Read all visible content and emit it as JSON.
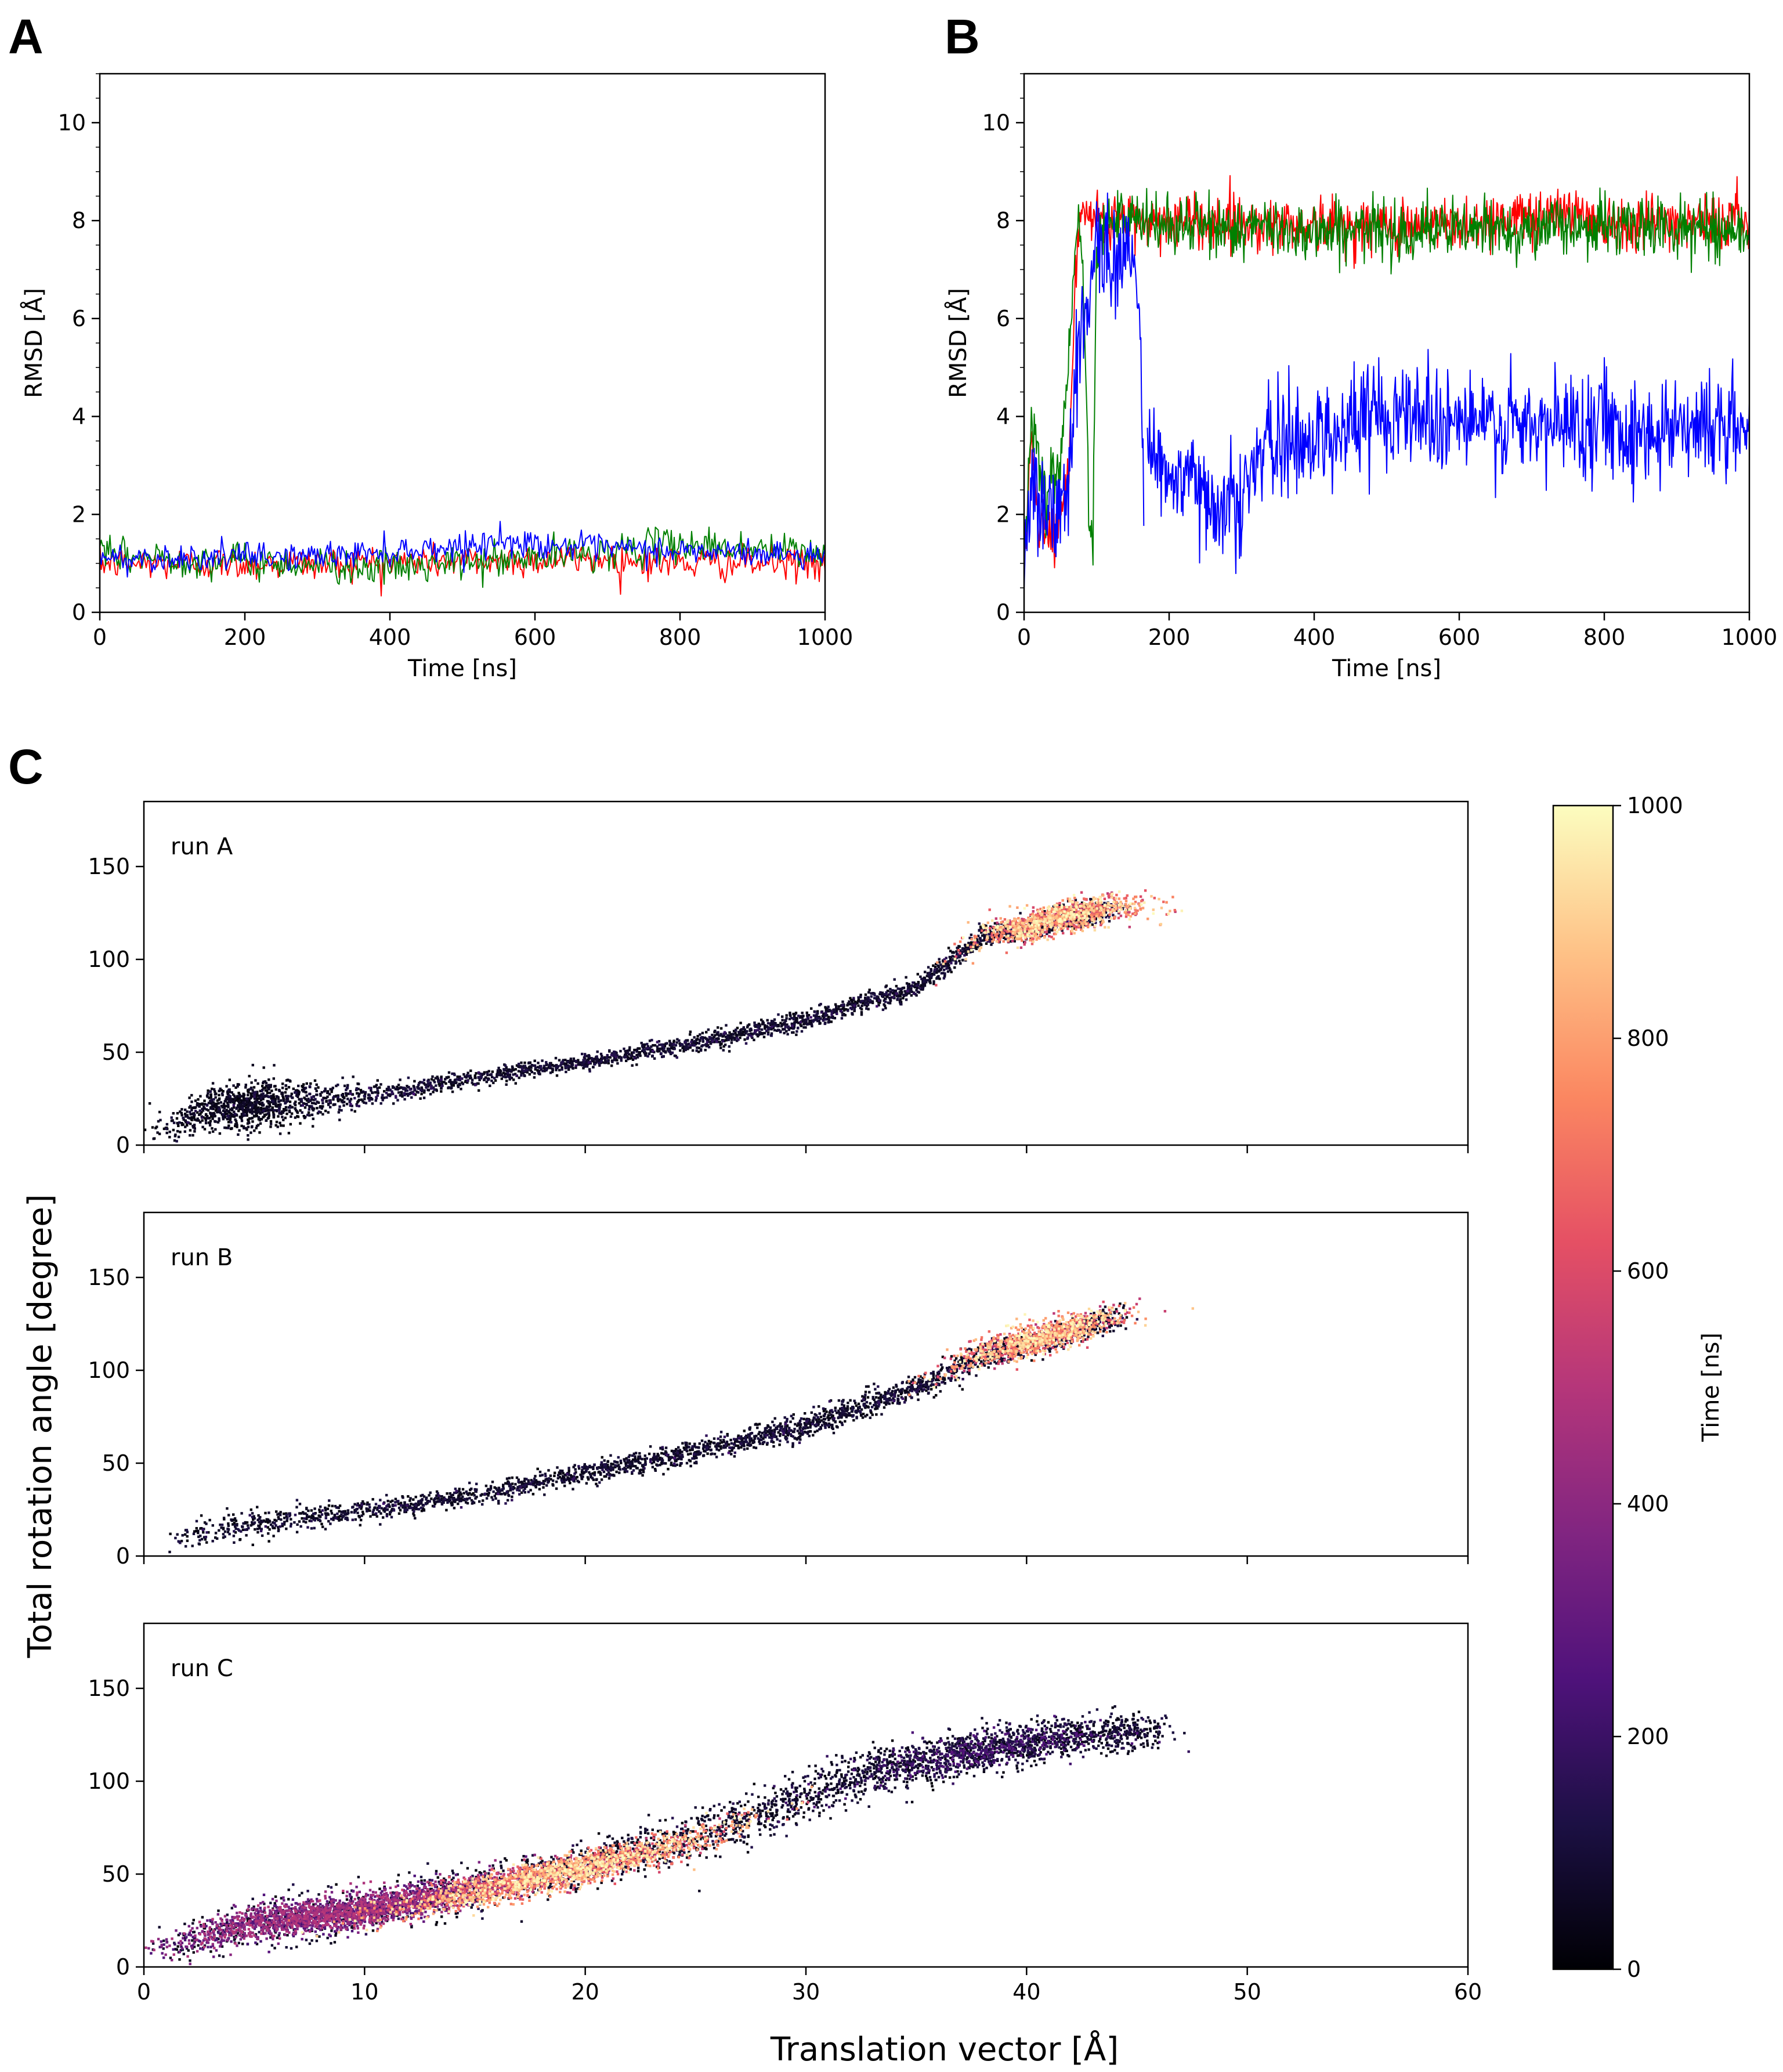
{
  "chart_data": [
    {
      "id": "A",
      "panel_label": "A",
      "type": "line",
      "xlabel": "Time [ns]",
      "ylabel": "RMSD [Å]",
      "xlim": [
        0,
        1000
      ],
      "ylim": [
        0,
        11
      ],
      "xticks": [
        0,
        200,
        400,
        600,
        800,
        1000
      ],
      "yticks": [
        0,
        2,
        4,
        6,
        8,
        10
      ],
      "x_step": 2,
      "series": [
        {
          "name": "red",
          "color": "#ff0000",
          "segments": [
            {
              "x": [
                0,
                300,
                500,
                700,
                800,
                1000
              ],
              "mean": [
                1.0,
                1.0,
                1.05,
                1.1,
                1.0,
                1.0
              ]
            }
          ],
          "noise": 0.17
        },
        {
          "name": "green",
          "color": "#008000",
          "segments": [
            {
              "x": [
                0,
                200,
                400,
                600,
                800,
                1000
              ],
              "mean": [
                1.15,
                1.05,
                0.9,
                1.1,
                1.4,
                1.2
              ]
            }
          ],
          "noise": 0.18
        },
        {
          "name": "blue",
          "color": "#0000ff",
          "segments": [
            {
              "x": [
                0,
                300,
                500,
                550,
                700,
                900,
                1000
              ],
              "mean": [
                1.1,
                1.15,
                1.35,
                1.45,
                1.3,
                1.2,
                1.15
              ]
            }
          ],
          "noise": 0.14
        }
      ]
    },
    {
      "id": "B",
      "panel_label": "B",
      "type": "line",
      "xlabel": "Time [ns]",
      "ylabel": "RMSD [Å]",
      "xlim": [
        0,
        1000
      ],
      "ylim": [
        0,
        11
      ],
      "xticks": [
        0,
        200,
        400,
        600,
        800,
        1000
      ],
      "yticks": [
        0,
        2,
        4,
        6,
        8,
        10
      ],
      "x_step": 1,
      "series": [
        {
          "name": "red",
          "color": "#ff0000",
          "segments": [
            {
              "x": [
                0,
                10,
                20,
                40,
                60,
                70,
                80,
                90,
                100,
                200,
                400,
                600,
                750,
                800,
                1000
              ],
              "mean": [
                1.2,
                3.5,
                2.0,
                1.5,
                2.5,
                6.5,
                8.1,
                8.0,
                8.0,
                8.0,
                7.9,
                7.9,
                8.2,
                8.0,
                8.0
              ]
            }
          ],
          "noise": 0.28
        },
        {
          "name": "green",
          "color": "#008000",
          "segments": [
            {
              "x": [
                0,
                10,
                30,
                50,
                60,
                70,
                80,
                90,
                95,
                100,
                110,
                200,
                400,
                600,
                800,
                1000
              ],
              "mean": [
                1.0,
                4.0,
                2.5,
                3.0,
                5.0,
                7.5,
                7.6,
                2.0,
                1.5,
                7.7,
                8.0,
                7.9,
                7.8,
                7.8,
                7.9,
                7.8
              ]
            }
          ],
          "noise": 0.3
        },
        {
          "name": "blue",
          "color": "#0000ff",
          "segments": [
            {
              "x": [
                0,
                10,
                30,
                50,
                60,
                80,
                100,
                120,
                150,
                160,
                165
              ],
              "mean": [
                1.0,
                2.5,
                2.0,
                2.0,
                2.5,
                6.0,
                7.5,
                7.3,
                7.2,
                6.0,
                2.0
              ]
            },
            {
              "x": [
                170,
                200,
                250,
                300,
                320,
                350,
                400,
                450,
                500,
                600,
                700,
                800,
                850,
                900,
                1000
              ],
              "mean": [
                3.5,
                2.8,
                2.4,
                2.2,
                3.2,
                3.4,
                3.6,
                3.8,
                4.2,
                3.9,
                3.7,
                4.0,
                3.6,
                3.9,
                3.7
              ]
            }
          ],
          "noise": 0.55
        }
      ]
    },
    {
      "id": "C",
      "panel_label": "C",
      "type": "scatter",
      "xlabel": "Translation vector [Å]",
      "ylabel": "Total rotation angle [degree]",
      "xlim": [
        0,
        60
      ],
      "ylim": [
        0,
        185
      ],
      "xticks": [
        0,
        10,
        20,
        30,
        40,
        50,
        60
      ],
      "yticks": [
        0,
        50,
        100,
        150
      ],
      "colormap": "magma",
      "colorbar": {
        "label": "Time [ns]",
        "range": [
          0,
          1000
        ],
        "ticks": [
          0,
          200,
          400,
          600,
          800,
          1000
        ]
      },
      "runs": [
        {
          "label": "run A",
          "x": [
            1,
            3,
            5,
            8,
            12,
            16,
            20,
            25,
            30,
            35,
            38,
            40,
            42,
            44
          ],
          "y": [
            8,
            20,
            22,
            25,
            30,
            38,
            45,
            55,
            67,
            85,
            112,
            116,
            123,
            127
          ],
          "spread": [
            6,
            10,
            11,
            8,
            5,
            4,
            4,
            5,
            5,
            5,
            5,
            7,
            7,
            7
          ],
          "clusters": [
            {
              "center_x": 41.5,
              "center_y": 124,
              "radius_x": 3.5,
              "radius_y": 9,
              "time_range": [
                520,
                1000
              ],
              "count": 1100
            },
            {
              "center_x": 4.5,
              "center_y": 20,
              "radius_x": 3.2,
              "radius_y": 14,
              "time_range": [
                0,
                70
              ],
              "count": 700
            }
          ]
        },
        {
          "label": "run B",
          "x": [
            1,
            3,
            5,
            8,
            12,
            16,
            20,
            25,
            30,
            35,
            38,
            40,
            42,
            44
          ],
          "y": [
            8,
            13,
            17,
            22,
            27,
            35,
            45,
            56,
            70,
            90,
            108,
            113,
            120,
            128
          ],
          "spread": [
            6,
            7,
            7,
            6,
            5,
            5,
            6,
            6,
            7,
            6,
            7,
            7,
            7,
            7
          ],
          "clusters": [
            {
              "center_x": 40.5,
              "center_y": 121,
              "radius_x": 3.5,
              "radius_y": 9,
              "time_range": [
                500,
                1000
              ],
              "count": 1100
            }
          ]
        },
        {
          "label": "run C",
          "x": [
            1,
            3,
            6,
            10,
            15,
            20,
            25,
            30,
            33,
            37,
            40,
            43,
            46
          ],
          "y": [
            10,
            18,
            25,
            30,
            42,
            55,
            70,
            92,
            105,
            115,
            120,
            125,
            127
          ],
          "spread": [
            8,
            12,
            13,
            12,
            12,
            12,
            13,
            14,
            13,
            12,
            11,
            10,
            9
          ],
          "clusters": [
            {
              "center_x": 9,
              "center_y": 30,
              "radius_x": 7,
              "radius_y": 10,
              "time_range": [
                220,
                520
              ],
              "count": 2200
            },
            {
              "center_x": 19,
              "center_y": 47,
              "radius_x": 7,
              "radius_y": 9,
              "time_range": [
                500,
                1000
              ],
              "count": 2000
            },
            {
              "center_x": 38,
              "center_y": 118,
              "radius_x": 6,
              "radius_y": 11,
              "time_range": [
                40,
                280
              ],
              "count": 700
            }
          ]
        }
      ]
    }
  ]
}
